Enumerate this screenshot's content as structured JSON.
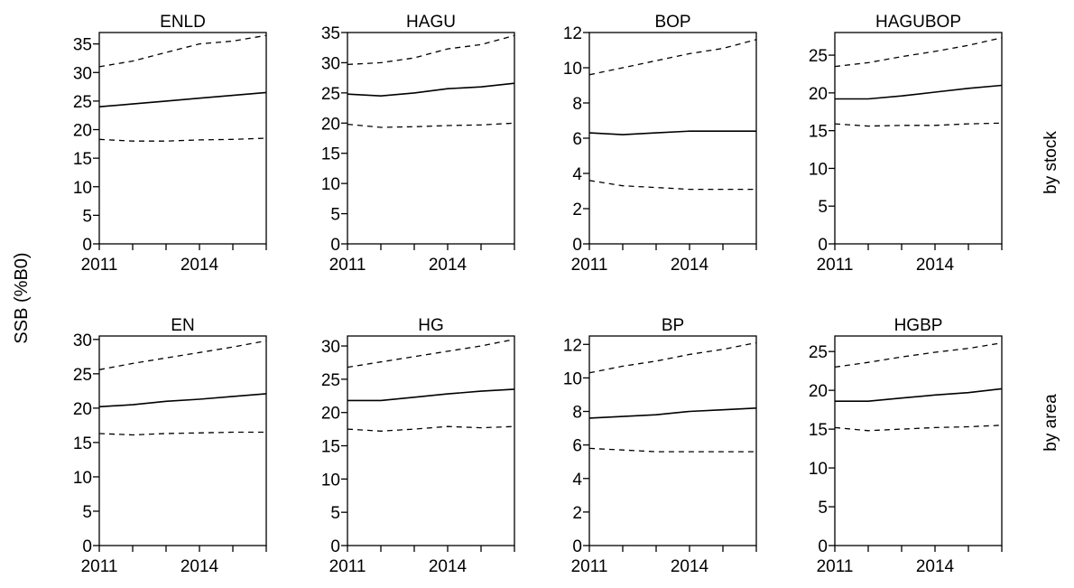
{
  "chart_data": {
    "type": "line",
    "ylabel": "SSB (%B0)",
    "row_labels": [
      "by stock",
      "by area"
    ],
    "x": [
      2011,
      2012,
      2013,
      2014,
      2015,
      2016
    ],
    "x_tick_labels": [
      "2011",
      "2014"
    ],
    "xlim": [
      2011,
      2016
    ],
    "panels": [
      {
        "title": "ENLD",
        "row": 0,
        "col": 0,
        "ylim": [
          0,
          37
        ],
        "yticks": [
          0,
          5,
          10,
          15,
          20,
          25,
          30,
          35
        ],
        "series": [
          {
            "values": [
              24.0,
              24.5,
              25.0,
              25.5,
              26.0,
              26.5
            ]
          },
          {
            "values": [
              31.0,
              32.0,
              33.5,
              35.0,
              35.5,
              36.5
            ]
          },
          {
            "values": [
              18.3,
              18.0,
              18.0,
              18.2,
              18.3,
              18.5
            ]
          }
        ]
      },
      {
        "title": "HAGU",
        "row": 0,
        "col": 1,
        "ylim": [
          0,
          35
        ],
        "yticks": [
          0,
          5,
          10,
          15,
          20,
          25,
          30,
          35
        ],
        "series": [
          {
            "values": [
              24.8,
              24.5,
              25.0,
              25.7,
              26.0,
              26.6
            ]
          },
          {
            "values": [
              29.7,
              30.0,
              30.8,
              32.3,
              33.0,
              34.5
            ]
          },
          {
            "values": [
              19.8,
              19.3,
              19.4,
              19.6,
              19.7,
              20.0
            ]
          }
        ]
      },
      {
        "title": "BOP",
        "row": 0,
        "col": 2,
        "ylim": [
          0,
          12
        ],
        "yticks": [
          0,
          2,
          4,
          6,
          8,
          10,
          12
        ],
        "series": [
          {
            "values": [
              6.3,
              6.2,
              6.3,
              6.4,
              6.4,
              6.4
            ]
          },
          {
            "values": [
              9.6,
              10.0,
              10.4,
              10.8,
              11.1,
              11.6
            ]
          },
          {
            "values": [
              3.6,
              3.3,
              3.2,
              3.1,
              3.1,
              3.1
            ]
          }
        ]
      },
      {
        "title": "HAGUBOP",
        "row": 0,
        "col": 3,
        "ylim": [
          0,
          28
        ],
        "yticks": [
          0,
          5,
          10,
          15,
          20,
          25
        ],
        "series": [
          {
            "values": [
              19.2,
              19.2,
              19.6,
              20.1,
              20.6,
              21.0
            ]
          },
          {
            "values": [
              23.5,
              24.0,
              24.8,
              25.5,
              26.3,
              27.3
            ]
          },
          {
            "values": [
              15.9,
              15.6,
              15.7,
              15.7,
              15.9,
              16.0
            ]
          }
        ]
      },
      {
        "title": "EN",
        "row": 1,
        "col": 0,
        "ylim": [
          0,
          30.5
        ],
        "yticks": [
          0,
          5,
          10,
          15,
          20,
          25,
          30
        ],
        "series": [
          {
            "values": [
              20.2,
              20.5,
              21.0,
              21.3,
              21.7,
              22.1
            ]
          },
          {
            "values": [
              25.6,
              26.5,
              27.3,
              28.1,
              28.9,
              29.8
            ]
          },
          {
            "values": [
              16.3,
              16.1,
              16.3,
              16.4,
              16.5,
              16.5
            ]
          }
        ]
      },
      {
        "title": "HG",
        "row": 1,
        "col": 1,
        "ylim": [
          0,
          31.5
        ],
        "yticks": [
          0,
          5,
          10,
          15,
          20,
          25,
          30
        ],
        "series": [
          {
            "values": [
              21.8,
              21.8,
              22.3,
              22.8,
              23.2,
              23.5
            ]
          },
          {
            "values": [
              26.8,
              27.6,
              28.4,
              29.2,
              30.0,
              31.0
            ]
          },
          {
            "values": [
              17.5,
              17.2,
              17.5,
              17.9,
              17.7,
              17.9
            ]
          }
        ]
      },
      {
        "title": "BP",
        "row": 1,
        "col": 2,
        "ylim": [
          0,
          12.5
        ],
        "yticks": [
          0,
          2,
          4,
          6,
          8,
          10,
          12
        ],
        "series": [
          {
            "values": [
              7.6,
              7.7,
              7.8,
              8.0,
              8.1,
              8.2
            ]
          },
          {
            "values": [
              10.3,
              10.7,
              11.0,
              11.4,
              11.7,
              12.1
            ]
          },
          {
            "values": [
              5.8,
              5.7,
              5.6,
              5.6,
              5.6,
              5.6
            ]
          }
        ]
      },
      {
        "title": "HGBP",
        "row": 1,
        "col": 3,
        "ylim": [
          0,
          27
        ],
        "yticks": [
          0,
          5,
          10,
          15,
          20,
          25
        ],
        "series": [
          {
            "values": [
              18.6,
              18.6,
              19.0,
              19.4,
              19.7,
              20.2
            ]
          },
          {
            "values": [
              23.0,
              23.6,
              24.3,
              24.9,
              25.4,
              26.1
            ]
          },
          {
            "values": [
              15.2,
              14.8,
              15.0,
              15.2,
              15.3,
              15.5
            ]
          }
        ]
      }
    ]
  }
}
